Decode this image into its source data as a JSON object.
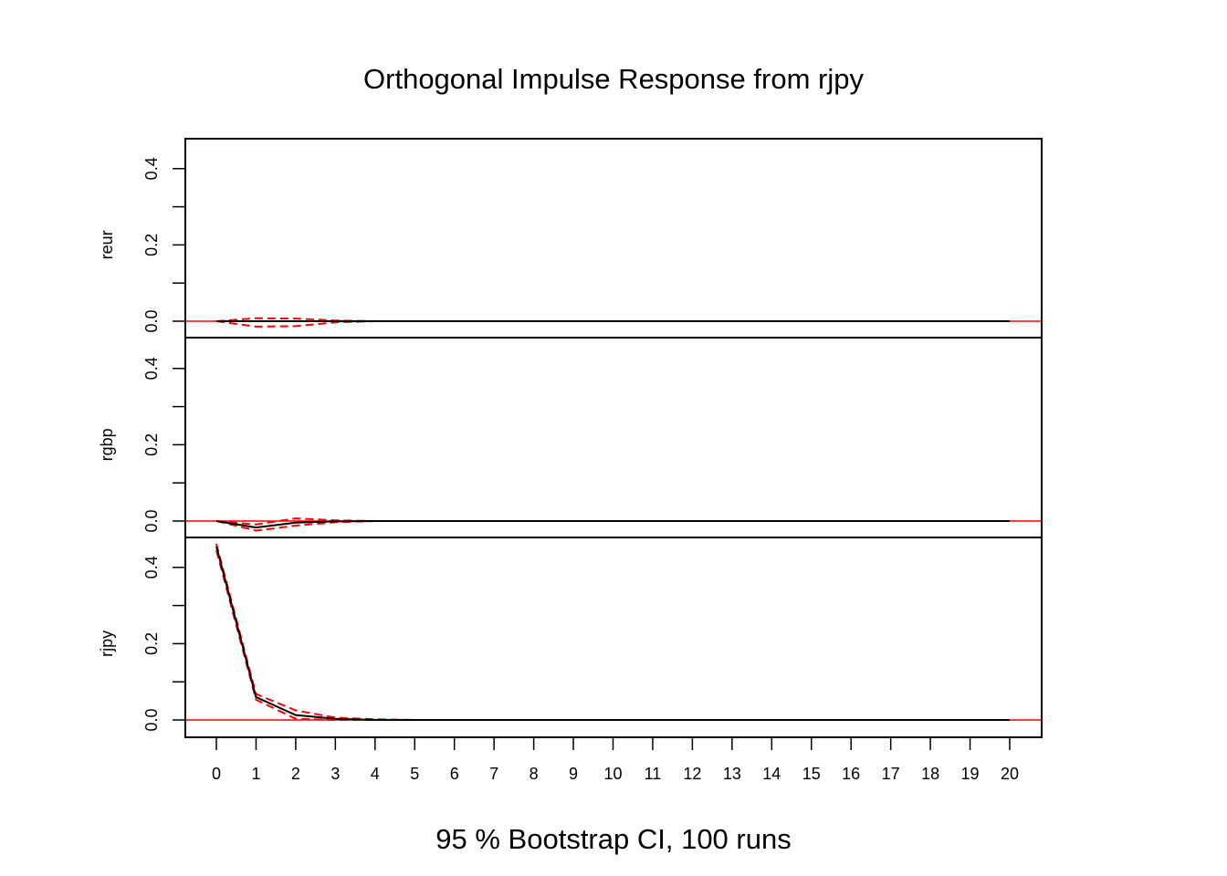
{
  "chart_data": {
    "type": "line",
    "title": "Orthogonal Impulse Response from rjpy",
    "xlabel": "95 % Bootstrap CI,  100 runs",
    "x": [
      0,
      1,
      2,
      3,
      4,
      5,
      6,
      7,
      8,
      9,
      10,
      11,
      12,
      13,
      14,
      15,
      16,
      17,
      18,
      19,
      20
    ],
    "xtick_labels": [
      "0",
      "1",
      "2",
      "3",
      "4",
      "5",
      "6",
      "7",
      "8",
      "9",
      "10",
      "11",
      "12",
      "13",
      "14",
      "15",
      "16",
      "17",
      "18",
      "19",
      "20"
    ],
    "ylim": [
      -0.045,
      0.48
    ],
    "ytick_labels": [
      "0.0",
      "0.2",
      "0.4"
    ],
    "colors": {
      "response": "#000000",
      "ci": "#ff0000",
      "zero_line": "#ff0000",
      "frame": "#000000"
    },
    "panels": [
      {
        "name": "reur",
        "response": [
          0.0,
          0.0,
          0.0,
          0.0,
          0.0,
          0.0,
          0.0,
          0.0,
          0.0,
          0.0,
          0.0,
          0.0,
          0.0,
          0.0,
          0.0,
          0.0,
          0.0,
          0.0,
          0.0,
          0.0,
          0.0
        ],
        "lower": [
          0.0,
          -0.014,
          -0.013,
          -0.003,
          0.0,
          0.0,
          0.0,
          0.0,
          0.0,
          0.0,
          0.0,
          0.0,
          0.0,
          0.0,
          0.0,
          0.0,
          0.0,
          0.0,
          0.0,
          0.0,
          0.0
        ],
        "upper": [
          0.0,
          0.008,
          0.007,
          0.002,
          0.0,
          0.0,
          0.0,
          0.0,
          0.0,
          0.0,
          0.0,
          0.0,
          0.0,
          0.0,
          0.0,
          0.0,
          0.0,
          0.0,
          0.0,
          0.0,
          0.0
        ]
      },
      {
        "name": "rgbp",
        "response": [
          0.0,
          -0.017,
          -0.004,
          -0.001,
          0.0,
          0.0,
          0.0,
          0.0,
          0.0,
          0.0,
          0.0,
          0.0,
          0.0,
          0.0,
          0.0,
          0.0,
          0.0,
          0.0,
          0.0,
          0.0,
          0.0
        ],
        "lower": [
          0.0,
          -0.025,
          -0.012,
          -0.003,
          0.0,
          0.0,
          0.0,
          0.0,
          0.0,
          0.0,
          0.0,
          0.0,
          0.0,
          0.0,
          0.0,
          0.0,
          0.0,
          0.0,
          0.0,
          0.0,
          0.0
        ],
        "upper": [
          0.0,
          -0.009,
          0.007,
          0.002,
          0.0,
          0.0,
          0.0,
          0.0,
          0.0,
          0.0,
          0.0,
          0.0,
          0.0,
          0.0,
          0.0,
          0.0,
          0.0,
          0.0,
          0.0,
          0.0,
          0.0
        ]
      },
      {
        "name": "rjpy",
        "response": [
          0.455,
          0.06,
          0.013,
          0.003,
          0.0,
          0.0,
          0.0,
          0.0,
          0.0,
          0.0,
          0.0,
          0.0,
          0.0,
          0.0,
          0.0,
          0.0,
          0.0,
          0.0,
          0.0,
          0.0,
          0.0
        ],
        "lower": [
          0.445,
          0.053,
          0.003,
          0.0,
          0.0,
          0.0,
          0.0,
          0.0,
          0.0,
          0.0,
          0.0,
          0.0,
          0.0,
          0.0,
          0.0,
          0.0,
          0.0,
          0.0,
          0.0,
          0.0,
          0.0
        ],
        "upper": [
          0.462,
          0.068,
          0.025,
          0.006,
          0.002,
          0.0,
          0.0,
          0.0,
          0.0,
          0.0,
          0.0,
          0.0,
          0.0,
          0.0,
          0.0,
          0.0,
          0.0,
          0.0,
          0.0,
          0.0,
          0.0
        ]
      }
    ]
  }
}
